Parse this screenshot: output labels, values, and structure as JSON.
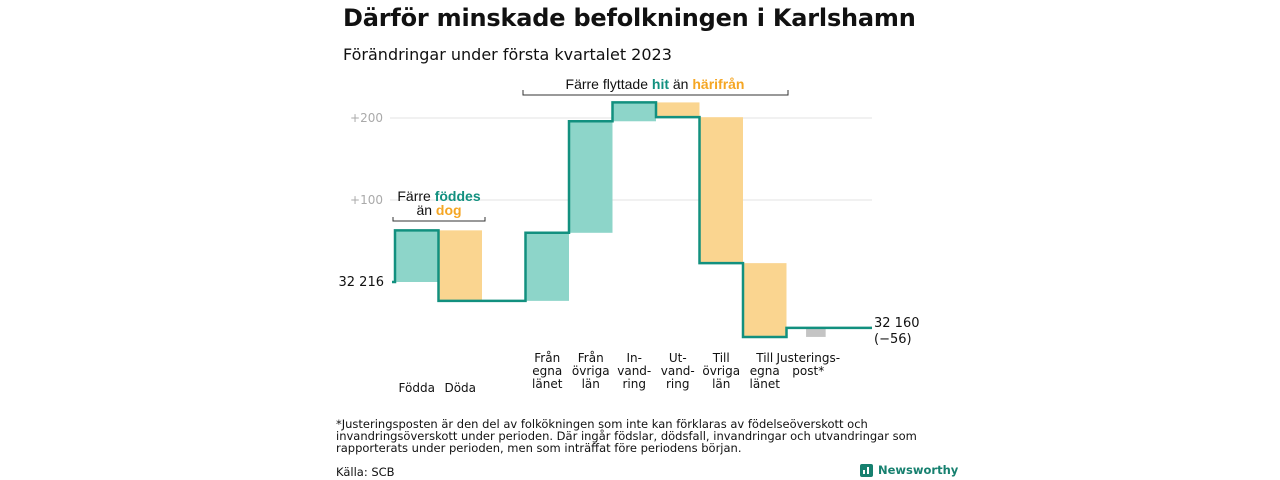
{
  "title": "Därför minskade befolkningen i Karlshamn",
  "subtitle": "Förändringar under första kvartalet 2023",
  "colors": {
    "teal": "#12907f",
    "teal_fill": "#8dd5c9",
    "orange": "#f5a623",
    "orange_fill": "#fad590",
    "gray_fill": "#c4c4c4",
    "grid": "#e3e3e3",
    "tick": "#aaaaaa"
  },
  "annotations": {
    "birth_line1": "Färre ",
    "birth_kw1": "föddes",
    "birth_line2": "än ",
    "birth_kw2": "dog",
    "move_prefix": "Färre flyttade ",
    "move_kw1": "hit",
    "move_mid": " än ",
    "move_kw2": "härifrån"
  },
  "footnote": "*Justeringsposten är den del av folkökningen som inte kan förklaras av födelseöverskott och invandringsöverskott under perioden. Där ingår födslar, dödsfall, invandringar och utvandringar som rapporterats under perioden, men som inträffat före periodens början.",
  "source": "Källa: SCB",
  "brand": "Newsworthy",
  "chart_data": {
    "type": "waterfall",
    "start_label": "32 216",
    "end_label": "32 160",
    "end_change_label": "(−56)",
    "y_ticks": [
      {
        "value": 100,
        "label": "+100"
      },
      {
        "value": 200,
        "label": "+200"
      }
    ],
    "ylim": [
      -70,
      225
    ],
    "steps": [
      {
        "label": [
          "Födda"
        ],
        "delta": 63,
        "kind": "inflow"
      },
      {
        "label": [
          "Döda"
        ],
        "delta": -86,
        "kind": "outflow"
      },
      {
        "label": [
          "Från",
          "egna",
          "länet"
        ],
        "delta": 83,
        "kind": "inflow"
      },
      {
        "label": [
          "Från",
          "övriga",
          "län"
        ],
        "delta": 136,
        "kind": "inflow"
      },
      {
        "label": [
          "In-",
          "vand-",
          "ring"
        ],
        "delta": 23,
        "kind": "inflow"
      },
      {
        "label": [
          "Ut-",
          "vand-",
          "ring"
        ],
        "delta": -18,
        "kind": "outflow"
      },
      {
        "label": [
          "Till",
          "övriga",
          "län"
        ],
        "delta": -178,
        "kind": "outflow"
      },
      {
        "label": [
          "Till",
          "egna",
          "länet"
        ],
        "delta": -90,
        "kind": "outflow"
      },
      {
        "label": [
          "Justerings-",
          "post*"
        ],
        "delta": 11,
        "kind": "adjustment"
      }
    ]
  }
}
